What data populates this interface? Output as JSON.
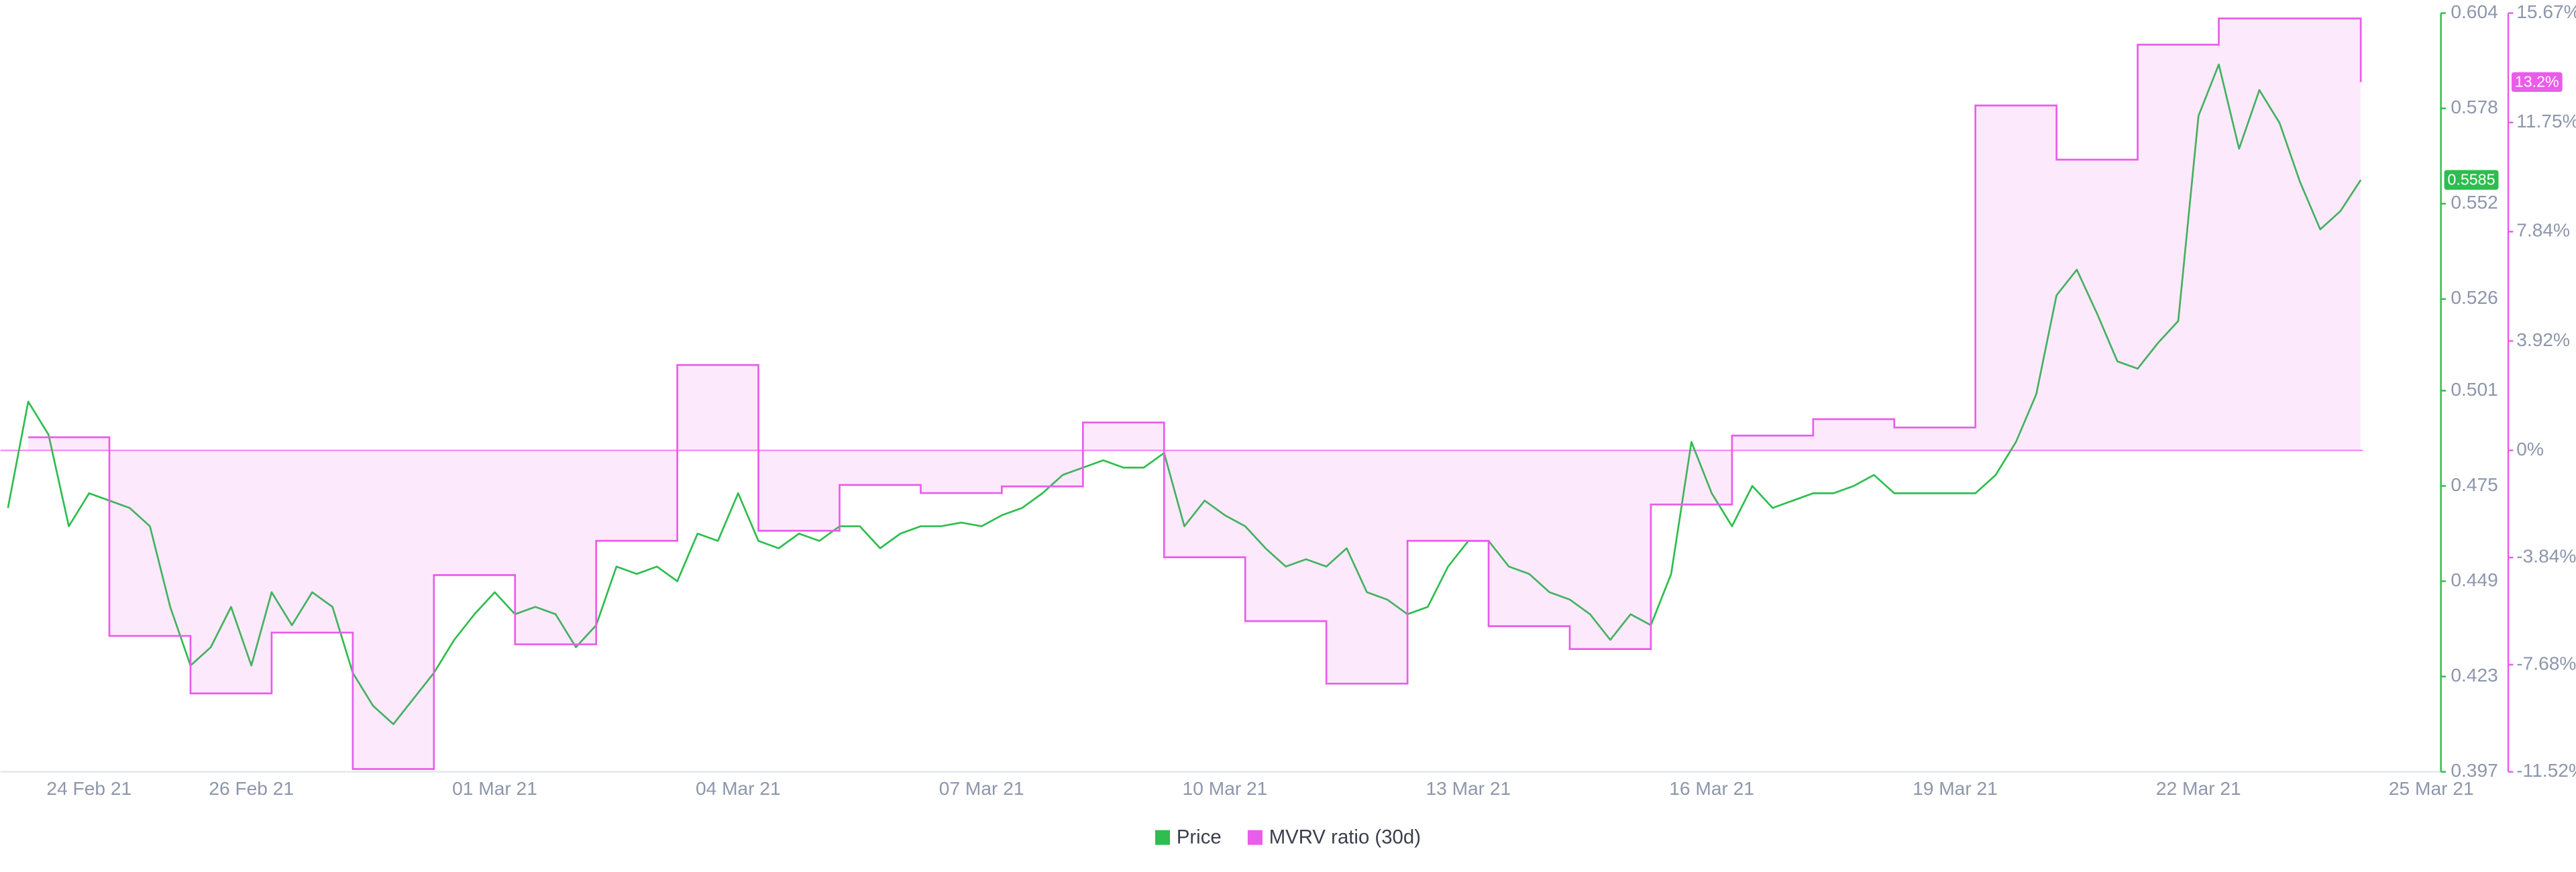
{
  "chart_data": {
    "type": "line",
    "categories": [
      null,
      null,
      null,
      null,
      "24 Feb 21",
      null,
      null,
      null,
      null,
      null,
      null,
      null,
      "26 Feb 21",
      null,
      null,
      null,
      null,
      null,
      null,
      null,
      null,
      null,
      null,
      null,
      "01 Mar 21",
      null,
      null,
      null,
      null,
      null,
      null,
      null,
      null,
      null,
      null,
      null,
      "04 Mar 21",
      null,
      null,
      null,
      null,
      null,
      null,
      null,
      null,
      null,
      null,
      null,
      "07 Mar 21",
      null,
      null,
      null,
      null,
      null,
      null,
      null,
      null,
      null,
      null,
      null,
      "10 Mar 21",
      null,
      null,
      null,
      null,
      null,
      null,
      null,
      null,
      null,
      null,
      null,
      "13 Mar 21",
      null,
      null,
      null,
      null,
      null,
      null,
      null,
      null,
      null,
      null,
      null,
      "16 Mar 21",
      null,
      null,
      null,
      null,
      null,
      null,
      null,
      null,
      null,
      null,
      null,
      "19 Mar 21",
      null,
      null,
      null,
      null,
      null,
      null,
      null,
      null,
      null,
      null,
      null,
      "22 Mar 21",
      null,
      null,
      null,
      null,
      null,
      null,
      null,
      null,
      null,
      null,
      null,
      "25 Mar 21"
    ],
    "series": [
      {
        "name": "Price",
        "color": "#2ebd4e",
        "style": "line",
        "axis": "y",
        "values": [
          0.469,
          0.498,
          0.489,
          0.464,
          0.473,
          0.471,
          0.469,
          0.464,
          0.442,
          0.426,
          0.431,
          0.442,
          0.426,
          0.446,
          0.437,
          0.446,
          0.442,
          0.424,
          0.415,
          0.41,
          0.417,
          0.424,
          0.433,
          0.44,
          0.446,
          0.44,
          0.442,
          0.44,
          0.431,
          0.437,
          0.453,
          0.451,
          0.453,
          0.449,
          0.462,
          0.46,
          0.473,
          0.46,
          0.458,
          0.462,
          0.46,
          0.464,
          0.464,
          0.458,
          0.462,
          0.464,
          0.464,
          0.465,
          0.464,
          0.467,
          0.469,
          0.473,
          0.478,
          0.48,
          0.482,
          0.48,
          0.48,
          0.484,
          0.464,
          0.471,
          0.467,
          0.464,
          0.458,
          0.453,
          0.455,
          0.453,
          0.458,
          0.446,
          0.444,
          0.44,
          0.442,
          0.453,
          0.46,
          0.46,
          0.453,
          0.451,
          0.446,
          0.444,
          0.44,
          0.433,
          0.44,
          0.437,
          0.451,
          0.487,
          0.473,
          0.464,
          0.475,
          0.469,
          0.471,
          0.473,
          0.473,
          0.475,
          0.478,
          0.473,
          0.473,
          0.473,
          0.473,
          0.473,
          0.478,
          0.487,
          0.5,
          0.527,
          0.534,
          0.522,
          0.509,
          0.507,
          0.514,
          0.52,
          0.576,
          0.59,
          0.567,
          0.583,
          0.574,
          0.558,
          0.545,
          0.55,
          0.5585,
          null,
          null,
          null,
          null
        ]
      },
      {
        "name": "MVRV ratio (30d)",
        "color": "#ea5cea",
        "fill": "rgba(234,92,234,0.13)",
        "style": "step-area",
        "axis": "y2",
        "values": [
          null,
          0.47,
          0.47,
          0.47,
          0.47,
          -6.65,
          -6.65,
          -6.65,
          -6.65,
          -8.71,
          -8.71,
          -8.71,
          -8.71,
          -6.53,
          -6.53,
          -6.53,
          -6.53,
          -11.42,
          -11.42,
          -11.42,
          -11.42,
          -4.47,
          -4.47,
          -4.47,
          -4.47,
          -6.95,
          -6.95,
          -6.95,
          -6.95,
          -3.24,
          -3.24,
          -3.24,
          -3.24,
          3.06,
          3.06,
          3.06,
          3.06,
          -2.88,
          -2.88,
          -2.88,
          -2.88,
          -1.24,
          -1.24,
          -1.24,
          -1.24,
          -1.53,
          -1.53,
          -1.53,
          -1.53,
          -1.29,
          -1.29,
          -1.29,
          -1.29,
          1.0,
          1.0,
          1.0,
          1.0,
          -3.83,
          -3.83,
          -3.83,
          -3.83,
          -6.12,
          -6.12,
          -6.12,
          -6.12,
          -8.36,
          -8.36,
          -8.36,
          -8.36,
          -3.24,
          -3.24,
          -3.24,
          -3.24,
          -6.3,
          -6.3,
          -6.3,
          -6.3,
          -7.12,
          -7.12,
          -7.12,
          -7.12,
          -1.94,
          -1.94,
          -1.94,
          -1.94,
          0.53,
          0.53,
          0.53,
          0.53,
          1.12,
          1.12,
          1.12,
          1.12,
          0.82,
          0.82,
          0.82,
          0.82,
          12.36,
          12.36,
          12.36,
          12.36,
          10.42,
          10.42,
          10.42,
          10.42,
          14.54,
          14.54,
          14.54,
          14.54,
          15.48,
          15.48,
          15.48,
          15.48,
          15.48,
          15.48,
          15.48,
          13.2,
          null,
          null,
          null,
          null
        ]
      }
    ],
    "ylim": [
      0.397,
      0.604
    ],
    "yticks": [
      0.397,
      0.423,
      0.449,
      0.475,
      0.501,
      0.526,
      0.552,
      0.578,
      0.604
    ],
    "y2lim": [
      -11.52,
      15.67
    ],
    "y2ticks": [
      {
        "value": -11.52,
        "label": "-11.52%"
      },
      {
        "value": -7.68,
        "label": "-7.68%"
      },
      {
        "value": -3.84,
        "label": "-3.84%"
      },
      {
        "value": 0,
        "label": "0%"
      },
      {
        "value": 3.92,
        "label": "3.92%"
      },
      {
        "value": 7.84,
        "label": "7.84%"
      },
      {
        "value": 11.75,
        "label": "11.75%"
      },
      {
        "value": 15.67,
        "label": "15.67%"
      }
    ],
    "annotations": [
      {
        "text": "0.5585",
        "value": 0.5585,
        "axis": "y",
        "color": "#2ebd4e"
      },
      {
        "text": "13.2%",
        "value": 13.2,
        "axis": "y2",
        "color": "#ea5cea"
      }
    ],
    "grid": false,
    "legend": "bottom"
  }
}
